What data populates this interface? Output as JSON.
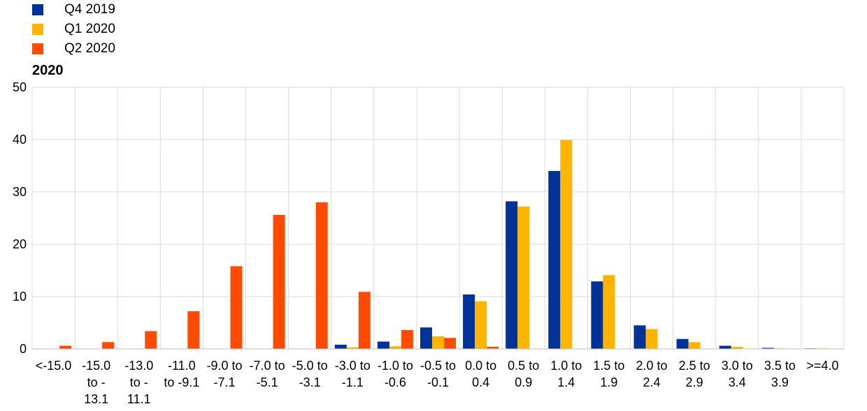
{
  "chart_data": {
    "type": "bar",
    "subtitle": "2020",
    "ylim": [
      0,
      50
    ],
    "yticks": [
      0,
      10,
      20,
      30,
      40,
      50
    ],
    "grid": true,
    "legend_position": "top-left",
    "categories": [
      [
        "<-15.0"
      ],
      [
        "-15.0",
        "to -",
        "13.1"
      ],
      [
        "-13.0",
        "to -",
        "11.1"
      ],
      [
        "-11.0",
        "to -9.1"
      ],
      [
        "-9.0 to",
        "-7.1"
      ],
      [
        "-7.0 to",
        "-5.1"
      ],
      [
        "-5.0 to",
        "-3.1"
      ],
      [
        "-3.0 to",
        "-1.1"
      ],
      [
        "-1.0 to",
        "-0.6"
      ],
      [
        "-0.5 to",
        "-0.1"
      ],
      [
        "0.0 to",
        "0.4"
      ],
      [
        "0.5 to",
        "0.9"
      ],
      [
        "1.0 to",
        "1.4"
      ],
      [
        "1.5 to",
        "1.9"
      ],
      [
        "2.0 to",
        "2.4"
      ],
      [
        "2.5 to",
        "2.9"
      ],
      [
        "3.0 to",
        "3.4"
      ],
      [
        "3.5 to",
        "3.9"
      ],
      [
        ">=4.0"
      ]
    ],
    "series": [
      {
        "name": "Q4 2019",
        "color": "#003299",
        "values": [
          0,
          0,
          0,
          0,
          0,
          0,
          0,
          0.8,
          1.4,
          4.1,
          10.4,
          28.2,
          34.0,
          12.9,
          4.5,
          1.9,
          0.6,
          0.2,
          0.1
        ]
      },
      {
        "name": "Q1 2020",
        "color": "#FFB400",
        "values": [
          0,
          0,
          0,
          0,
          0,
          0,
          0,
          0.3,
          0.5,
          2.4,
          9.1,
          27.2,
          39.9,
          14.1,
          3.8,
          1.3,
          0.4,
          0.1,
          0.1
        ]
      },
      {
        "name": "Q2 2020",
        "color": "#FF4B00",
        "values": [
          0.6,
          1.3,
          3.4,
          7.2,
          15.8,
          25.6,
          28.0,
          10.9,
          3.6,
          2.1,
          0.4,
          0,
          0,
          0,
          0,
          0,
          0,
          0,
          0
        ]
      }
    ]
  }
}
